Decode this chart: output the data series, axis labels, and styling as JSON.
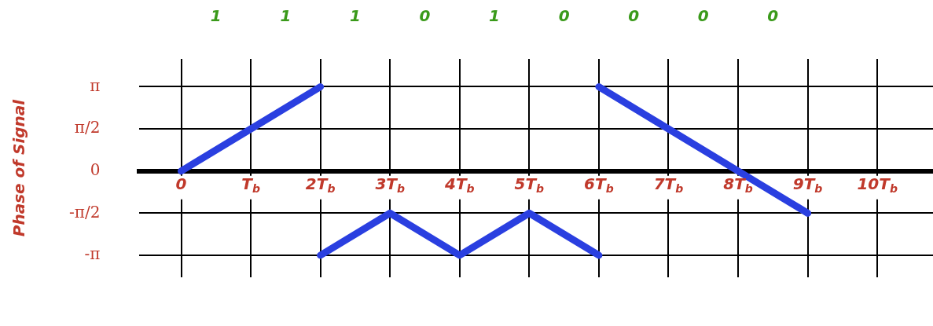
{
  "chart_data": {
    "type": "line",
    "ylabel": "Phase of Signal",
    "series": [
      {
        "color": "#2a3fe0",
        "x": [
          0,
          1,
          2
        ],
        "values": [
          0,
          1.57,
          3.14
        ]
      },
      {
        "color": "#2a3fe0",
        "x": [
          2,
          3,
          4,
          5,
          6
        ],
        "values": [
          -3.14,
          -1.57,
          -3.14,
          -1.57,
          -3.14
        ]
      },
      {
        "color": "#2a3fe0",
        "x": [
          6,
          7,
          8,
          9
        ],
        "values": [
          3.14,
          1.57,
          0,
          -1.57
        ]
      }
    ],
    "xlim": [
      -0.6,
      10.8
    ],
    "xticks": [
      0,
      {
        "value": 1,
        "label": "T$_{b}$"
      },
      {
        "value": 2,
        "label": "2T$_{b}$"
      },
      {
        "value": 3,
        "label": "3T$_{b}$"
      },
      {
        "value": 4,
        "label": "4T$_{b}$"
      },
      {
        "value": 5,
        "label": "5T$_{b}$"
      },
      {
        "value": 6,
        "label": "6T$_{b}$"
      },
      {
        "value": 7,
        "label": "7T$_{b}$"
      },
      {
        "value": 8,
        "label": "8T$_{b}$"
      },
      {
        "value": 9,
        "label": "9T$_{b}$"
      },
      {
        "value": 10,
        "label": "10T$_{b}$"
      }
    ],
    "annotations": [
      "1",
      "1",
      "1",
      "0",
      "1",
      "0",
      "0",
      "0",
      "0"
    ],
    "ylim": [
      -3.96,
      4.18
    ],
    "yticks": [
      {
        "value": -3.1416,
        "label": "-π"
      },
      {
        "value": -1.5708,
        "label": "-π/2"
      },
      0,
      {
        "value": 1.5708,
        "label": "π/2"
      },
      {
        "value": 3.1416,
        "label": "π"
      }
    ],
    "grid": true,
    "legend": false,
    "marker": "none",
    "line_style": "solid"
  }
}
